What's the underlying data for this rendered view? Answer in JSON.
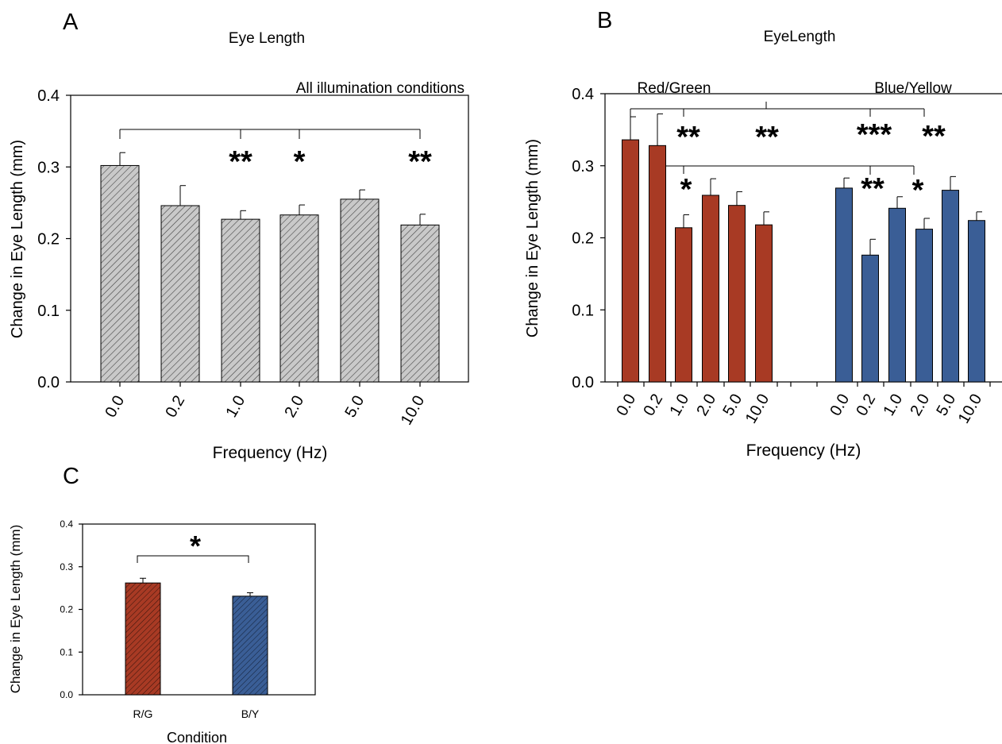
{
  "panels": {
    "a": {
      "letter": "A",
      "title": "Eye Length",
      "annotation": "All illumination conditions",
      "xlabel": "Frequency (Hz)",
      "ylabel": "Change in Eye Length (mm)"
    },
    "b": {
      "letter": "B",
      "title": "EyeLength",
      "group1_label": "Red/Green",
      "group2_label": "Blue/Yellow",
      "xlabel": "Frequency (Hz)",
      "ylabel": "Change in Eye Length (mm)"
    },
    "c": {
      "letter": "C",
      "xlabel": "Condition",
      "ylabel": "Change in Eye Length (mm)"
    }
  },
  "chart_data": [
    {
      "panel": "A",
      "type": "bar",
      "title": "Eye Length",
      "annotation": "All illumination conditions",
      "xlabel": "Frequency (Hz)",
      "ylabel": "Change in Eye Length (mm)",
      "ylim": [
        0,
        0.4
      ],
      "yticks": [
        "0.0",
        "0.1",
        "0.2",
        "0.3",
        "0.4"
      ],
      "categories": [
        "0.0",
        "0.2",
        "1.0",
        "2.0",
        "5.0",
        "10.0"
      ],
      "values": [
        0.302,
        0.246,
        0.227,
        0.233,
        0.255,
        0.219
      ],
      "errors": [
        0.018,
        0.028,
        0.012,
        0.014,
        0.013,
        0.015
      ],
      "bar_color": "#c9c9c9",
      "hatch": true,
      "significance": [
        {
          "categories": [
            "0.0",
            "1.0"
          ],
          "label": "**"
        },
        {
          "categories": [
            "0.0",
            "2.0"
          ],
          "label": "*"
        },
        {
          "categories": [
            "0.0",
            "10.0"
          ],
          "label": "**"
        }
      ],
      "grid": false
    },
    {
      "panel": "B",
      "type": "bar",
      "title": "EyeLength",
      "xlabel": "Frequency (Hz)",
      "ylabel": "Change in Eye Length (mm)",
      "ylim": [
        0,
        0.4
      ],
      "yticks": [
        "0.0",
        "0.1",
        "0.2",
        "0.3",
        "0.4"
      ],
      "groups": [
        {
          "name": "Red/Green",
          "color": "#a83a24",
          "categories": [
            "0.0",
            "0.2",
            "1.0",
            "2.0",
            "5.0",
            "10.0"
          ],
          "values": [
            0.336,
            0.328,
            0.214,
            0.259,
            0.245,
            0.218
          ],
          "errors": [
            0.032,
            0.044,
            0.018,
            0.023,
            0.019,
            0.018
          ]
        },
        {
          "name": "Blue/Yellow",
          "color": "#3a5e96",
          "categories": [
            "0.0",
            "0.2",
            "1.0",
            "2.0",
            "5.0",
            "10.0"
          ],
          "values": [
            0.269,
            0.176,
            0.241,
            0.212,
            0.266,
            0.224
          ],
          "errors": [
            0.014,
            0.022,
            0.016,
            0.015,
            0.019,
            0.012
          ]
        }
      ],
      "significance": [
        {
          "pair": [
            "Red/Green 0.0",
            "Red/Green 1.0"
          ],
          "label": "**"
        },
        {
          "pair": [
            "Red/Green 0.0",
            "Blue/Yellow 0.2"
          ],
          "label": "***"
        },
        {
          "pair": [
            "Red/Green 0.0",
            "Blue/Yellow 2.0"
          ],
          "label": "**"
        },
        {
          "pair": [
            "Red/Green 0.2",
            "Red/Green 1.0"
          ],
          "label": "*"
        },
        {
          "pair": [
            "Red/Green 0.2",
            "Blue/Yellow 0.2"
          ],
          "label": "**"
        },
        {
          "pair": [
            "Red/Green 0.2",
            "Blue/Yellow 2.0"
          ],
          "label": "*"
        }
      ],
      "extra_labels": [
        {
          "label": "**",
          "between": [
            "Red/Green 10.0",
            "Blue/Yellow 0.0"
          ]
        }
      ],
      "grid": false
    },
    {
      "panel": "C",
      "type": "bar",
      "xlabel": "Condition",
      "ylabel": "Change in Eye Length (mm)",
      "ylim": [
        0,
        0.4
      ],
      "yticks": [
        "0.0",
        "0.1",
        "0.2",
        "0.3",
        "0.4"
      ],
      "categories": [
        "R/G",
        "B/Y"
      ],
      "values": [
        0.262,
        0.231
      ],
      "errors": [
        0.011,
        0.008
      ],
      "colors": [
        "#a83a24",
        "#3a5e96"
      ],
      "hatch": true,
      "significance": [
        {
          "categories": [
            "R/G",
            "B/Y"
          ],
          "label": "*"
        }
      ],
      "grid": false
    }
  ]
}
